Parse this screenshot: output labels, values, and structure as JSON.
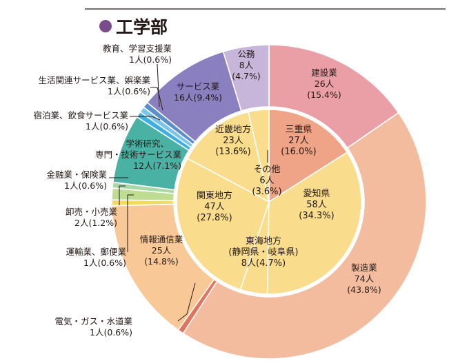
{
  "chart_data": [
    {
      "type": "pie",
      "title": "工学部",
      "ring": "outer",
      "slices": [
        {
          "name": "建設業",
          "count": "26人",
          "percent": "(15.4%)",
          "value": 15.4,
          "color": "#ea9ea6"
        },
        {
          "name": "製造業",
          "count": "74人",
          "percent": "(43.8%)",
          "value": 43.8,
          "color": "#f4bc9f"
        },
        {
          "name": "電気・ガス・水道業",
          "count": "1人(0.6%)",
          "percent": "",
          "value": 0.6,
          "color": "#e2735d"
        },
        {
          "name": "情報通信業",
          "count": "25人",
          "percent": "(14.8%)",
          "value": 14.8,
          "color": "#f8c896"
        },
        {
          "name": "運輸業、郵便業",
          "count": "1人(0.6%)",
          "percent": "",
          "value": 0.6,
          "color": "#f4da62"
        },
        {
          "name": "卸売・小売業",
          "count": "2人(1.2%)",
          "percent": "",
          "value": 1.2,
          "color": "#bedd93"
        },
        {
          "name": "金融業・保険業",
          "count": "1人(0.6%)",
          "percent": "",
          "value": 0.6,
          "color": "#a9d7a6"
        },
        {
          "name": "学術研究、専門・技術サービス業",
          "count": "12人(7.1%)",
          "percent": "",
          "value": 7.1,
          "color": "#4ab2a4"
        },
        {
          "name": "宿泊業、飲食サービス業",
          "count": "1人(0.6%)",
          "percent": "",
          "value": 0.6,
          "color": "#3eaee2"
        },
        {
          "name": "生活関連サービス業、娯楽業",
          "count": "1人(0.6%)",
          "percent": "",
          "value": 0.6,
          "color": "#7bc3e8"
        },
        {
          "name": "教育、学習支援業",
          "count": "1人(0.6%)",
          "percent": "",
          "value": 0.6,
          "color": "#5a8fcc"
        },
        {
          "name": "サービス業",
          "count": "16人(9.4%)",
          "percent": "",
          "value": 9.4,
          "color": "#8a80c0"
        },
        {
          "name": "公務",
          "count": "8人",
          "percent": "(4.7%)",
          "value": 4.7,
          "color": "#c8b6da"
        }
      ]
    },
    {
      "type": "pie",
      "ring": "inner",
      "slices": [
        {
          "name": "三重県",
          "count": "27人",
          "percent": "(16.0%)",
          "value": 16.0,
          "color": "#efa487"
        },
        {
          "name": "愛知県",
          "count": "58人",
          "percent": "(34.3%)",
          "value": 34.3,
          "color": "#f9dd8c"
        },
        {
          "name": "東海地方",
          "sub": "(静岡県・岐阜県)",
          "count": "8人(4.7%)",
          "value": 4.7,
          "color": "#f9dd8c"
        },
        {
          "name": "関東地方",
          "count": "47人",
          "percent": "(27.8%)",
          "value": 27.8,
          "color": "#f9dd8c"
        },
        {
          "name": "近畿地方",
          "count": "23人",
          "percent": "(13.6%)",
          "value": 13.6,
          "color": "#f9dd8c"
        },
        {
          "name": "その他",
          "count": "6人",
          "percent": "(3.6%)",
          "value": 3.6,
          "color": "#f9dd8c"
        }
      ]
    }
  ]
}
